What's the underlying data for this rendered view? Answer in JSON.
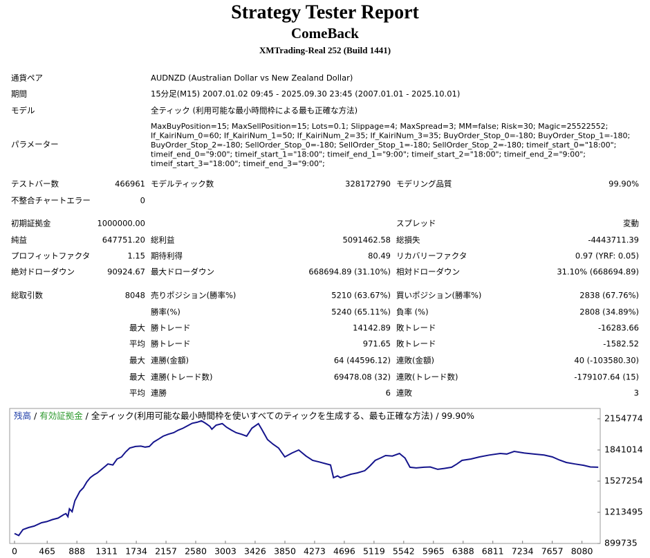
{
  "header": {
    "title": "Strategy Tester Report",
    "subtitle": "ComeBack",
    "server": "XMTrading-Real 252 (Build 1441)"
  },
  "info": [
    {
      "label": "通貨ペア",
      "value": "AUDNZD (Australian Dollar vs New Zealand Dollar)"
    },
    {
      "label": "期間",
      "value": "15分足(M15) 2007.01.02 09:45 - 2025.09.30 23:45 (2007.01.01 - 2025.10.01)"
    },
    {
      "label": "モデル",
      "value": "全ティック (利用可能な最小時間枠による最も正確な方法)"
    }
  ],
  "parameters": {
    "label": "パラメーター",
    "lines": [
      "MaxBuyPosition=15; MaxSellPosition=15; Lots=0.1; Slippage=4; MaxSpread=3; MM=false; Risk=30; Magic=25522552;",
      "If_KairiNum_0=60; If_KairiNum_1=50; If_KairiNum_2=35; If_KairiNum_3=35; BuyOrder_Stop_0=-180; BuyOrder_Stop_1=-180;",
      "BuyOrder_Stop_2=-180; SellOrder_Stop_0=-180; SellOrder_Stop_1=-180; SellOrder_Stop_2=-180; timeif_start_0=\"18:00\";",
      "timeif_end_0=\"9:00\"; timeif_start_1=\"18:00\"; timeif_end_1=\"9:00\"; timeif_start_2=\"18:00\"; timeif_end_2=\"9:00\";",
      "timeif_start_3=\"18:00\"; timeif_end_3=\"9:00\";"
    ]
  },
  "stats": [
    [
      "テストバー数",
      "466961",
      "モデルティック数",
      "328172790",
      "モデリング品質",
      "99.90%"
    ],
    [
      "不整合チャートエラー",
      "0",
      null,
      null,
      null,
      null
    ],
    [
      "初期証拠金",
      "1000000.00",
      null,
      null,
      "スプレッド",
      "変動"
    ],
    [
      "純益",
      "647751.20",
      "総利益",
      "5091462.58",
      "総損失",
      "-4443711.39"
    ],
    [
      "プロフィットファクタ",
      "1.15",
      "期待利得",
      "80.49",
      "リカバリーファクタ",
      "0.97 (YRF: 0.05)"
    ],
    [
      "絶対ドローダウン",
      "90924.67",
      "最大ドローダウン",
      "668694.89 (31.10%)",
      "相対ドローダウン",
      "31.10% (668694.89)"
    ],
    [
      "総取引数",
      "8048",
      "売りポジション(勝率%)",
      "5210 (63.67%)",
      "買いポジション(勝率%)",
      "2838 (67.76%)"
    ],
    [
      null,
      null,
      "勝率(%)",
      "5240 (65.11%)",
      "負率 (%)",
      "2808 (34.89%)"
    ],
    [
      null,
      "最大",
      "勝トレード",
      "14142.89",
      "敗トレード",
      "-16283.66"
    ],
    [
      null,
      "平均",
      "勝トレード",
      "971.65",
      "敗トレード",
      "-1582.52"
    ],
    [
      null,
      "最大",
      "連勝(金額)",
      "64 (44596.12)",
      "連敗(金額)",
      "40 (-103580.30)"
    ],
    [
      null,
      "最大",
      "連勝(トレード数)",
      "69478.08 (32)",
      "連敗(トレード数)",
      "-179107.64 (15)"
    ],
    [
      null,
      "平均",
      "連勝",
      "6",
      "連敗",
      "3"
    ]
  ],
  "chart_data": {
    "type": "line",
    "legend": [
      {
        "text": "残高",
        "color": "#1f3ea8"
      },
      {
        "text": " / ",
        "color": "#000000"
      },
      {
        "text": "有効証拠金",
        "color": "#2e9a2e"
      },
      {
        "text": " / 全ティック(利用可能な最小時間枠を使いすべてのティックを生成する、最も正確な方法) / 99.90%",
        "color": "#000000"
      }
    ],
    "color": "#14148c",
    "x": [
      0,
      60,
      120,
      200,
      280,
      386,
      460,
      540,
      620,
      700,
      732,
      760,
      782,
      820,
      860,
      930,
      980,
      1030,
      1078,
      1130,
      1180,
      1230,
      1276,
      1330,
      1400,
      1460,
      1524,
      1580,
      1640,
      1722,
      1800,
      1860,
      1919,
      1980,
      2050,
      2117,
      2190,
      2266,
      2330,
      2400,
      2464,
      2530,
      2600,
      2662,
      2720,
      2780,
      2810,
      2870,
      2958,
      3020,
      3090,
      3156,
      3230,
      3305,
      3380,
      3473,
      3520,
      3602,
      3680,
      3760,
      3849,
      3950,
      4047,
      4150,
      4245,
      4340,
      4443,
      4500,
      4542,
      4600,
      4641,
      4700,
      4789,
      4880,
      4987,
      5060,
      5136,
      5210,
      5284,
      5380,
      5482,
      5560,
      5631,
      5720,
      5828,
      5920,
      6026,
      6120,
      6224,
      6300,
      6372,
      6500,
      6620,
      6760,
      6917,
      7010,
      7115,
      7260,
      7412,
      7540,
      7659,
      7760,
      7857,
      7980,
      8104,
      8200,
      8312
    ],
    "values": [
      1000000,
      980000,
      1040000,
      1060000,
      1075000,
      1109000,
      1120000,
      1140000,
      1155000,
      1190000,
      1200000,
      1170000,
      1248000,
      1220000,
      1330000,
      1423000,
      1460000,
      1520000,
      1562000,
      1590000,
      1610000,
      1640000,
      1667000,
      1700000,
      1690000,
      1750000,
      1771000,
      1820000,
      1860000,
      1876000,
      1880000,
      1870000,
      1876000,
      1920000,
      1950000,
      1980000,
      2000000,
      2015000,
      2040000,
      2060000,
      2085000,
      2110000,
      2120000,
      2134000,
      2110000,
      2080000,
      2050000,
      2090000,
      2106000,
      2070000,
      2040000,
      2015000,
      2000000,
      1980000,
      2060000,
      2106000,
      2050000,
      1946000,
      1900000,
      1860000,
      1771000,
      1810000,
      1841000,
      1780000,
      1736000,
      1720000,
      1701000,
      1690000,
      1562000,
      1580000,
      1562000,
      1575000,
      1597000,
      1610000,
      1632000,
      1680000,
      1736000,
      1760000,
      1785000,
      1780000,
      1806000,
      1760000,
      1667000,
      1660000,
      1667000,
      1670000,
      1646000,
      1655000,
      1667000,
      1700000,
      1736000,
      1750000,
      1771000,
      1790000,
      1806000,
      1800000,
      1827000,
      1810000,
      1799000,
      1790000,
      1771000,
      1740000,
      1715000,
      1700000,
      1687000,
      1670000,
      1667000
    ],
    "xlim": [
      0,
      8340
    ],
    "xticks": [
      0,
      465,
      888,
      1311,
      1734,
      2157,
      2580,
      3003,
      3426,
      3850,
      4273,
      4696,
      5119,
      5542,
      5965,
      6388,
      6811,
      7234,
      7657,
      8080
    ],
    "ylim": [
      899735,
      2259000
    ],
    "yticks": [
      899735,
      1213495,
      1527254,
      1841014,
      2154774
    ]
  }
}
